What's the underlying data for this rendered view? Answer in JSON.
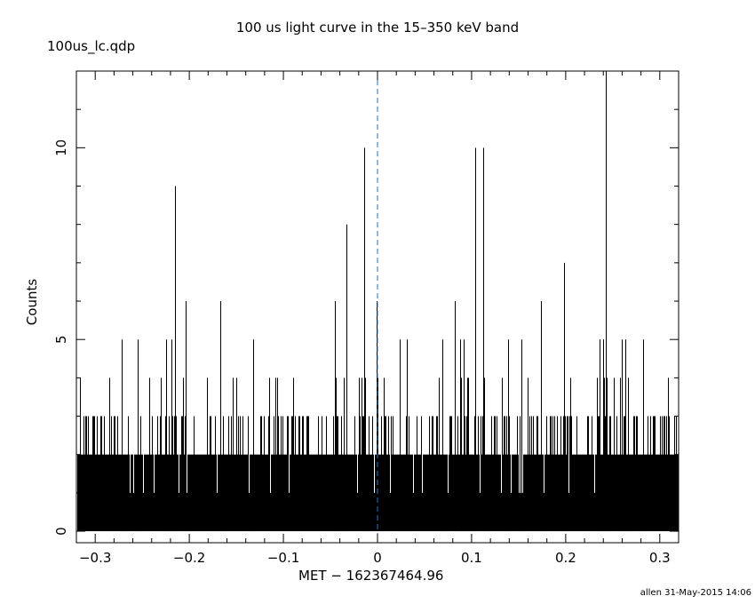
{
  "title": "100 us light curve in the 15–350 keV band",
  "file_label": "100us_lc.qdp",
  "footer": "allen 31-May-2015 14:06",
  "colors": {
    "histogram": "#000000",
    "trigger_line": "#1f6fd0",
    "background": "#ffffff"
  },
  "chart_data": {
    "type": "bar",
    "style": "histogram",
    "title": "100 us light curve in the 15–350 keV band",
    "xlabel": "MET − 162367464.96",
    "ylabel": "Counts",
    "xlim": [
      -0.32,
      0.32
    ],
    "ylim": [
      -0.3,
      12
    ],
    "bin_width": 0.0001,
    "xticks": [
      -0.3,
      -0.2,
      -0.1,
      0,
      0.1,
      0.2,
      0.3
    ],
    "xtick_labels": [
      "−0.3",
      "−0.2",
      "−0.1",
      "0",
      "0.1",
      "0.2",
      "0.3"
    ],
    "yticks": [
      0,
      5,
      10
    ],
    "ytick_labels": [
      "0",
      "5",
      "10"
    ],
    "typical_counts": [
      0,
      3
    ],
    "trigger_line_x": 0,
    "grid": false,
    "peaks": [
      {
        "x": -0.272,
        "y": 5
      },
      {
        "x": -0.255,
        "y": 5
      },
      {
        "x": -0.225,
        "y": 5
      },
      {
        "x": -0.219,
        "y": 5
      },
      {
        "x": -0.215,
        "y": 9
      },
      {
        "x": -0.204,
        "y": 6
      },
      {
        "x": -0.167,
        "y": 6
      },
      {
        "x": -0.132,
        "y": 5
      },
      {
        "x": -0.045,
        "y": 6
      },
      {
        "x": -0.033,
        "y": 8
      },
      {
        "x": -0.014,
        "y": 10
      },
      {
        "x": -0.001,
        "y": 6
      },
      {
        "x": 0.024,
        "y": 5
      },
      {
        "x": 0.031,
        "y": 5
      },
      {
        "x": 0.069,
        "y": 5
      },
      {
        "x": 0.082,
        "y": 6
      },
      {
        "x": 0.088,
        "y": 5
      },
      {
        "x": 0.092,
        "y": 5
      },
      {
        "x": 0.104,
        "y": 10
      },
      {
        "x": 0.112,
        "y": 10
      },
      {
        "x": 0.139,
        "y": 5
      },
      {
        "x": 0.153,
        "y": 5
      },
      {
        "x": 0.174,
        "y": 6
      },
      {
        "x": 0.198,
        "y": 7
      },
      {
        "x": 0.236,
        "y": 5
      },
      {
        "x": 0.24,
        "y": 5
      },
      {
        "x": 0.243,
        "y": 12
      },
      {
        "x": 0.26,
        "y": 5
      },
      {
        "x": 0.263,
        "y": 5
      },
      {
        "x": 0.282,
        "y": 5
      }
    ]
  }
}
